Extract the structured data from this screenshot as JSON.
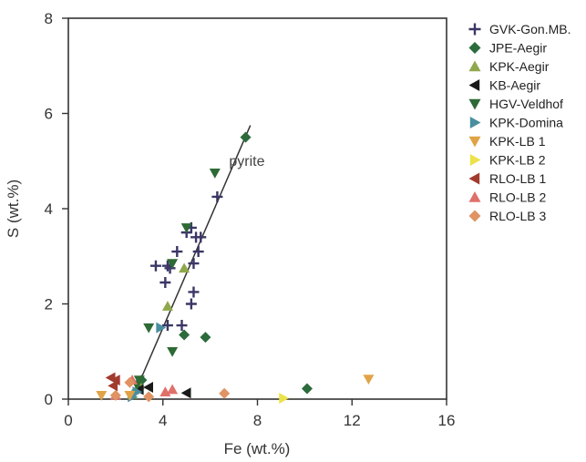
{
  "chart_data": {
    "type": "scatter",
    "title": "",
    "xlabel": "Fe (wt.%)",
    "ylabel": "S (wt.%)",
    "xlim": [
      0,
      16
    ],
    "ylim": [
      0,
      8
    ],
    "xticks": [
      0,
      4,
      8,
      12,
      16
    ],
    "yticks": [
      0,
      2,
      4,
      6,
      8
    ],
    "grid": false,
    "legend_position": "right",
    "annotations": [
      {
        "text": "pyrite",
        "x": 6.8,
        "y": 4.9
      }
    ],
    "reference_line": {
      "name": "pyrite",
      "points": [
        [
          2.7,
          0.0
        ],
        [
          7.7,
          5.75
        ]
      ],
      "color": "#333333"
    },
    "series": [
      {
        "name": "GVK-Gon.MB.",
        "marker": "plus",
        "color": "#3a3766",
        "points": [
          [
            3.7,
            2.8
          ],
          [
            4.2,
            2.8
          ],
          [
            4.1,
            2.45
          ],
          [
            4.3,
            2.75
          ],
          [
            4.6,
            3.1
          ],
          [
            5.0,
            3.5
          ],
          [
            5.2,
            3.6
          ],
          [
            5.4,
            3.4
          ],
          [
            5.6,
            3.4
          ],
          [
            5.5,
            3.1
          ],
          [
            5.3,
            2.85
          ],
          [
            5.3,
            2.25
          ],
          [
            5.2,
            2.0
          ],
          [
            4.8,
            1.55
          ],
          [
            6.3,
            4.25
          ],
          [
            4.2,
            1.55
          ]
        ]
      },
      {
        "name": "JPE-Aegir",
        "marker": "diamond",
        "color": "#2b6b3c",
        "points": [
          [
            7.5,
            5.5
          ],
          [
            5.8,
            1.3
          ],
          [
            4.9,
            1.35
          ],
          [
            10.1,
            0.22
          ],
          [
            3.1,
            0.4
          ]
        ]
      },
      {
        "name": "KPK-Aegir",
        "marker": "triangle-up",
        "color": "#8fa84b",
        "points": [
          [
            4.2,
            1.95
          ],
          [
            4.9,
            2.75
          ],
          [
            3.0,
            0.3
          ],
          [
            2.7,
            0.1
          ]
        ]
      },
      {
        "name": "KB-Aegir",
        "marker": "triangle-left",
        "color": "#1a1a1a",
        "points": [
          [
            3.4,
            0.25
          ],
          [
            5.0,
            0.13
          ],
          [
            3.0,
            0.2
          ]
        ]
      },
      {
        "name": "HGV-Veldhof",
        "marker": "triangle-down",
        "color": "#2d6a35",
        "points": [
          [
            6.2,
            4.75
          ],
          [
            5.0,
            3.6
          ],
          [
            4.4,
            2.85
          ],
          [
            3.4,
            1.5
          ],
          [
            4.4,
            1.0
          ],
          [
            3.0,
            0.4
          ],
          [
            2.9,
            0.3
          ]
        ]
      },
      {
        "name": "KPK-Domina",
        "marker": "triangle-right",
        "color": "#4a8ea0",
        "points": [
          [
            3.9,
            1.5
          ],
          [
            2.9,
            0.15
          ],
          [
            2.7,
            0.05
          ]
        ]
      },
      {
        "name": "KPK-LB 1",
        "marker": "triangle-down",
        "color": "#e0a447",
        "points": [
          [
            12.7,
            0.42
          ],
          [
            1.4,
            0.08
          ],
          [
            2.6,
            0.08
          ]
        ]
      },
      {
        "name": "KPK-LB 2",
        "marker": "triangle-right",
        "color": "#ece24a",
        "points": [
          [
            9.1,
            0.02
          ]
        ]
      },
      {
        "name": "RLO-LB 1",
        "marker": "triangle-left",
        "color": "#a33a2e",
        "points": [
          [
            1.8,
            0.45
          ],
          [
            1.9,
            0.28
          ],
          [
            2.0,
            0.4
          ]
        ]
      },
      {
        "name": "RLO-LB 2",
        "marker": "triangle-up",
        "color": "#e0706a",
        "points": [
          [
            2.7,
            0.4
          ],
          [
            4.4,
            0.2
          ],
          [
            4.1,
            0.15
          ],
          [
            2.0,
            0.08
          ]
        ]
      },
      {
        "name": "RLO-LB 3",
        "marker": "diamond",
        "color": "#e09363",
        "points": [
          [
            6.6,
            0.12
          ],
          [
            3.4,
            0.05
          ],
          [
            2.0,
            0.08
          ],
          [
            2.6,
            0.35
          ]
        ]
      }
    ]
  }
}
